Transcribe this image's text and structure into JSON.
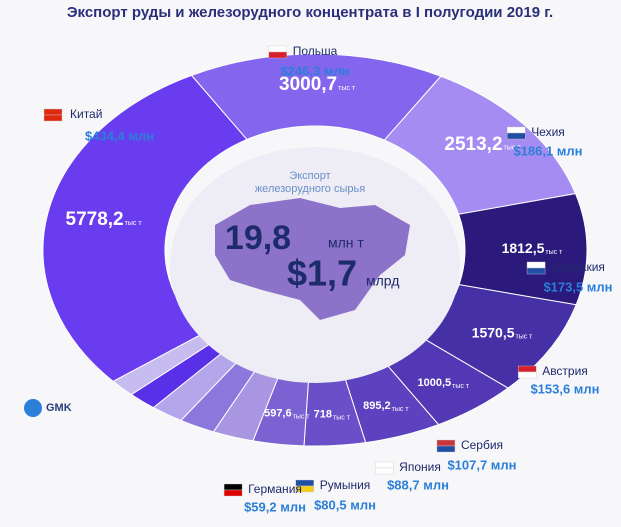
{
  "chart_data": {
    "type": "donut",
    "title": "Экспорт руды и железорудного концентрата в I полугодии 2019 г.",
    "categories": [
      "Польша",
      "Чехия",
      "Словакия",
      "Австрия",
      "Сербия",
      "Япония",
      "Румыния",
      "Германия",
      null,
      null,
      null,
      null,
      null,
      "Китай"
    ],
    "values": [
      3000.7,
      2513.2,
      1812.5,
      1570.5,
      1000.5,
      895.2,
      718,
      597.6,
      480,
      420,
      380,
      330,
      300,
      5778.2
    ],
    "value_labels": [
      "3000,7",
      "2513,2",
      "1812,5",
      "1570,5",
      "1000,5",
      "895,2",
      "718",
      "597,6",
      null,
      null,
      null,
      null,
      null,
      "5778,2"
    ],
    "value_unit": "тыс т",
    "colors": [
      "#8466ee",
      "#a48cf3",
      "#2b1a7c",
      "#4630a6",
      "#5338b6",
      "#5d42bf",
      "#6a50c8",
      "#7a62d2",
      "#a896e2",
      "#8c78dc",
      "#b4a6ea",
      "#5a2fe8",
      "#c6bcef",
      "#6a3cf0"
    ],
    "revenue": {
      "values": [
        246.3,
        186.1,
        173.5,
        153.6,
        107.7,
        88.7,
        80.5,
        59.2,
        null,
        null,
        null,
        null,
        null,
        434.4
      ],
      "value_labels": [
        "$246,3 млн",
        "$186,1 млн",
        "$173,5 млн",
        "$153,6 млн",
        "$107,7 млн",
        "$88,7 млн",
        "$80,5 млн",
        "$59,2 млн",
        null,
        null,
        null,
        null,
        null,
        "$434,4 млн"
      ]
    },
    "center": {
      "label": "Экспорт железорудного сырья",
      "volume": "19,8",
      "volume_unit": "млн т",
      "value": "$1,7",
      "value_unit": "млрд"
    },
    "logo": "GMK"
  }
}
